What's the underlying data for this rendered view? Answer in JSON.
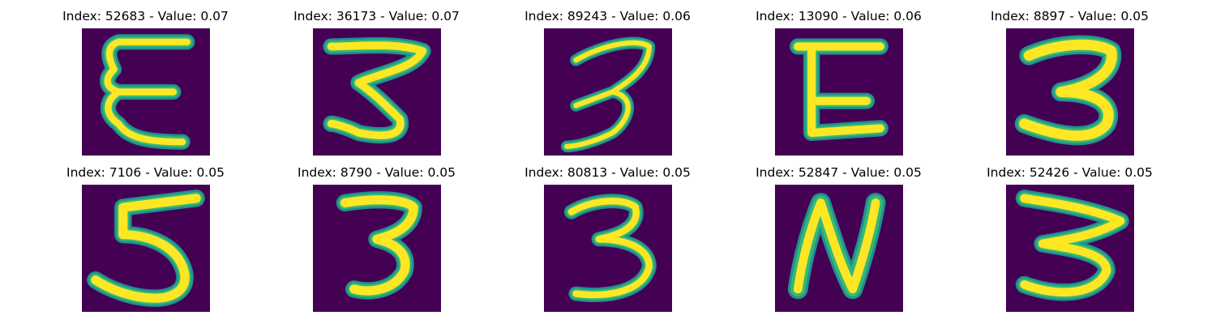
{
  "figure": {
    "panels": [
      {
        "index_label": "Index: 52683 - Value: 0.07",
        "digit": "E-shape"
      },
      {
        "index_label": "Index: 36173 - Value: 0.07",
        "digit": "3-zigzag"
      },
      {
        "index_label": "Index: 89243 - Value: 0.06",
        "digit": "3-slanted"
      },
      {
        "index_label": "Index: 13090 - Value: 0.06",
        "digit": "E-block"
      },
      {
        "index_label": "Index: 8897 - Value: 0.05",
        "digit": "3-bold"
      },
      {
        "index_label": "Index: 7106 - Value: 0.05",
        "digit": "5"
      },
      {
        "index_label": "Index: 8790 - Value: 0.05",
        "digit": "3-upright"
      },
      {
        "index_label": "Index: 80813 - Value: 0.05",
        "digit": "3-round"
      },
      {
        "index_label": "Index: 52847 - Value: 0.05",
        "digit": "N"
      },
      {
        "index_label": "Index: 52426 - Value: 0.05",
        "digit": "3-wide"
      }
    ],
    "colors": {
      "background": "#440154",
      "stroke_core": "#fde725",
      "stroke_edge": "#35b779",
      "stroke_halo": "#21918c"
    }
  }
}
